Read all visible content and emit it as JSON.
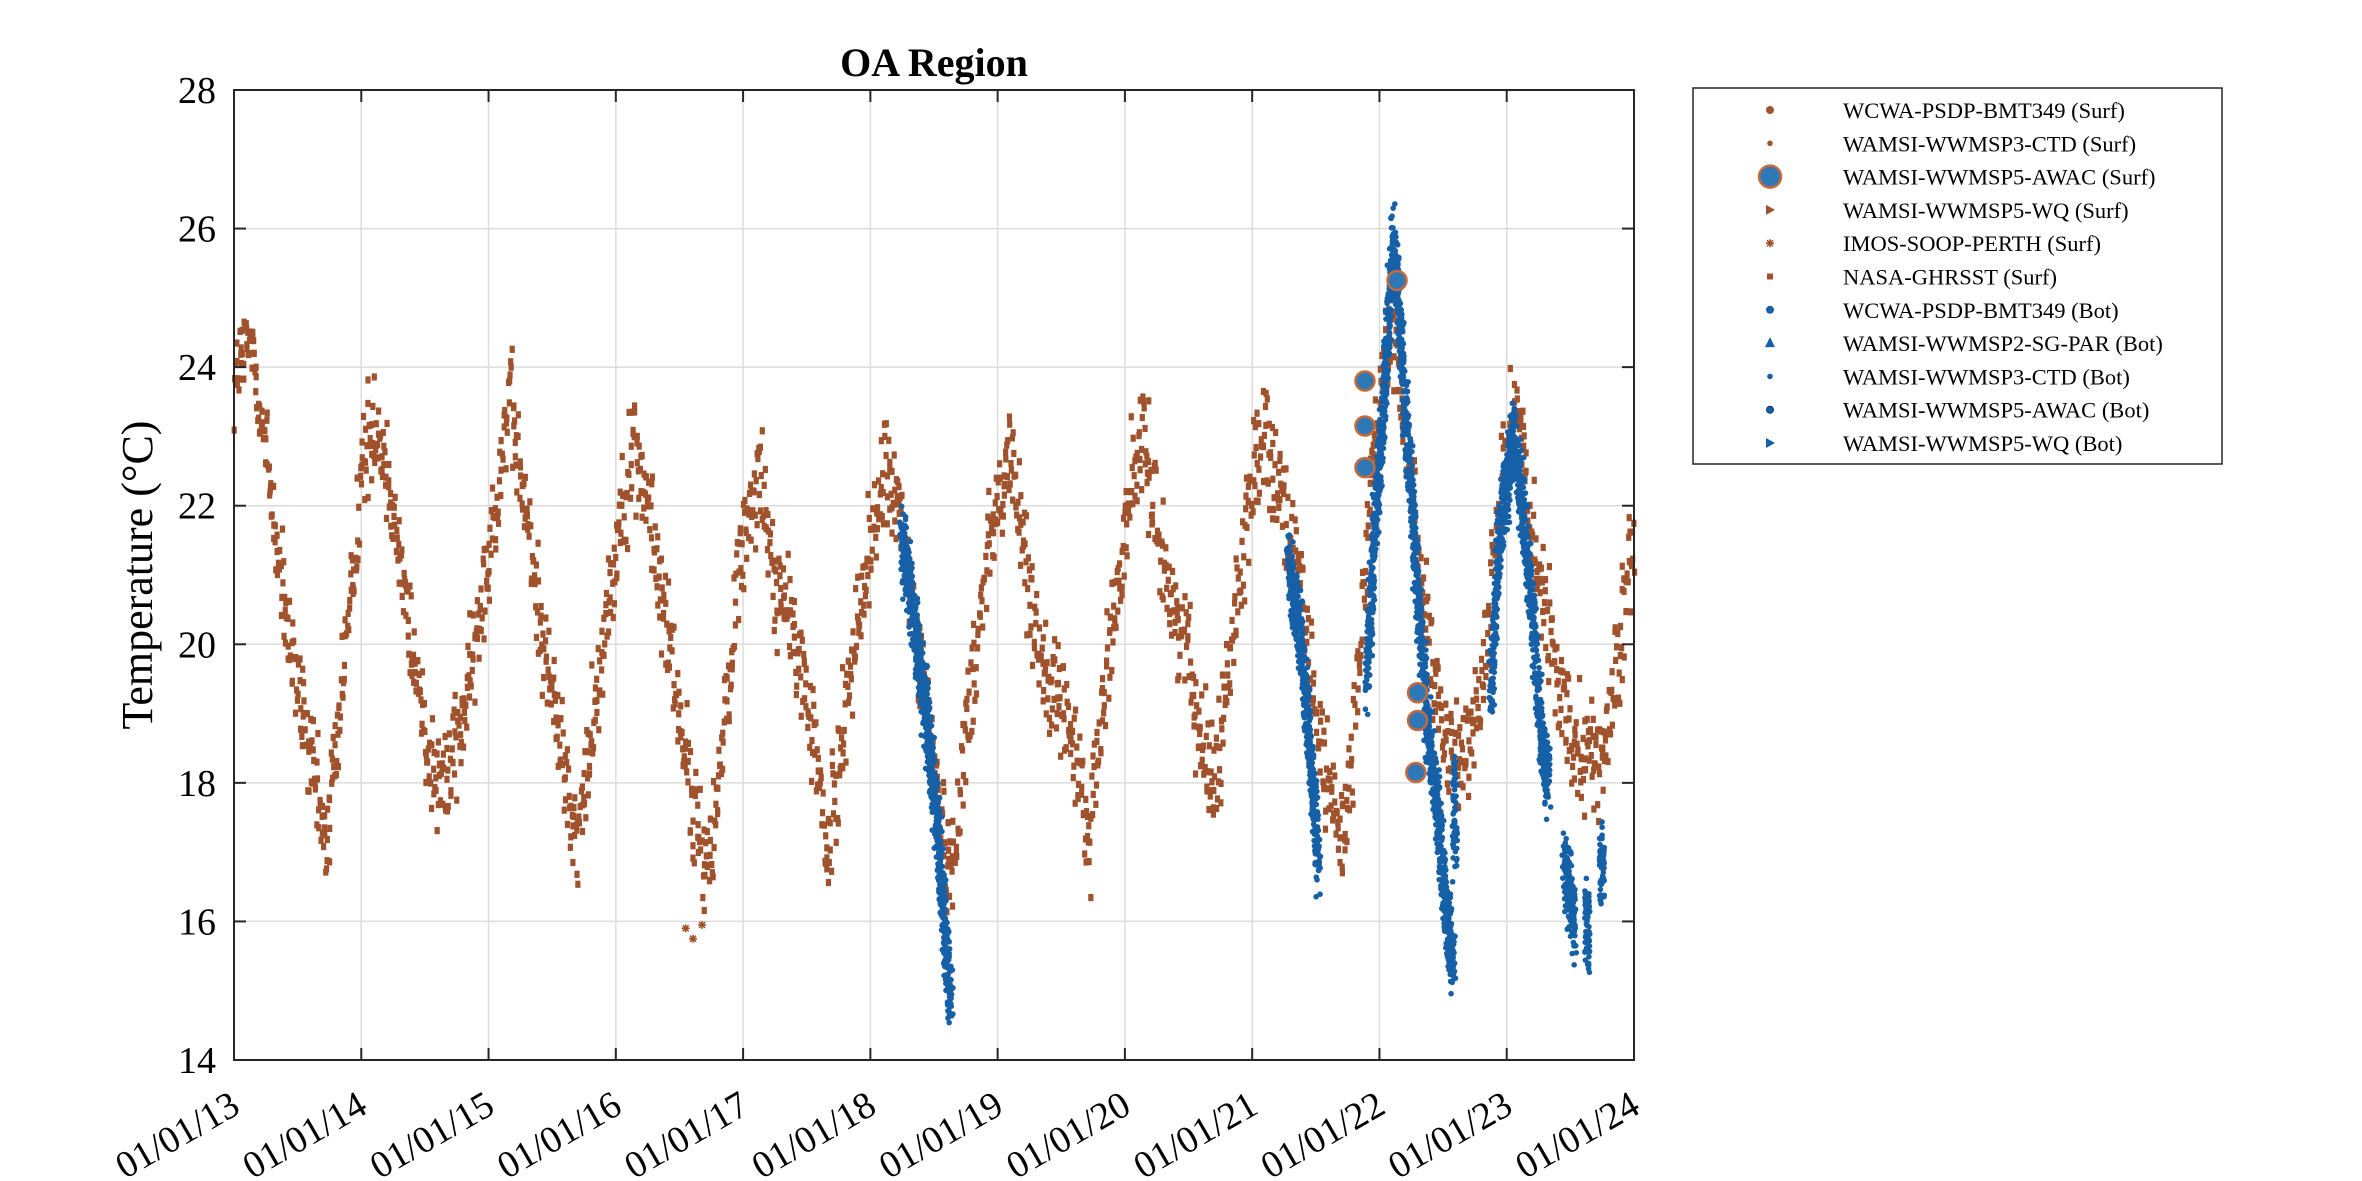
{
  "chart_data": {
    "type": "scatter",
    "title": "OA Region",
    "xlabel": "",
    "ylabel": "Temperature (°C)",
    "xlim": [
      "2013-01-01",
      "2024-01-01"
    ],
    "ylim": [
      14,
      28
    ],
    "grid": true,
    "legend_placement": "outside right",
    "xticks": [
      "01/01/13",
      "01/01/14",
      "01/01/15",
      "01/01/16",
      "01/01/17",
      "01/01/18",
      "01/01/19",
      "01/01/20",
      "01/01/21",
      "01/01/22",
      "01/01/23",
      "01/01/24"
    ],
    "yticks": [
      "14",
      "16",
      "18",
      "20",
      "22",
      "24",
      "26",
      "28"
    ],
    "colors": {
      "surf": "#a0522d",
      "bot": "#1660a8",
      "surf_marker_edge": "#c46a3c"
    },
    "series": [
      {
        "name": "WCWA-PSDP-BMT349 (Surf)",
        "marker": "dot",
        "group": "surf",
        "points": []
      },
      {
        "name": "WAMSI-WWMSP3-CTD (Surf)",
        "marker": "small-dot",
        "group": "surf",
        "points": []
      },
      {
        "name": "WAMSI-WWMSP5-AWAC (Surf)",
        "marker": "big-circle",
        "group": "surf",
        "points": [
          [
            "2021-11-20",
            23.8
          ],
          [
            "2021-11-20",
            23.15
          ],
          [
            "2021-11-20",
            22.55
          ],
          [
            "2022-02-20",
            25.25
          ],
          [
            "2022-04-20",
            19.3
          ],
          [
            "2022-04-20",
            18.9
          ],
          [
            "2022-04-15",
            18.15
          ]
        ]
      },
      {
        "name": "WAMSI-WWMSP5-WQ (Surf)",
        "marker": "triangle-right",
        "group": "surf",
        "points": []
      },
      {
        "name": "IMOS-SOOP-PERTH (Surf)",
        "marker": "asterisk",
        "group": "surf",
        "points": [
          [
            "2016-07-20",
            15.9
          ],
          [
            "2016-08-10",
            15.75
          ],
          [
            "2016-09-05",
            15.95
          ]
        ]
      },
      {
        "name": "NASA-GHRSST (Surf)",
        "marker": "square",
        "group": "surf",
        "anchors": [
          [
            "2013-01-01",
            23.8
          ],
          [
            "2013-02-20",
            24.4
          ],
          [
            "2013-04-10",
            22.5
          ],
          [
            "2013-06-01",
            20.2
          ],
          [
            "2013-07-20",
            18.9
          ],
          [
            "2013-09-20",
            17.1
          ],
          [
            "2013-11-10",
            19.5
          ],
          [
            "2014-01-05",
            22.6
          ],
          [
            "2014-02-10",
            23.3
          ],
          [
            "2014-04-01",
            22.1
          ],
          [
            "2014-05-20",
            20.2
          ],
          [
            "2014-07-15",
            18.4
          ],
          [
            "2014-09-01",
            18.0
          ],
          [
            "2014-11-15",
            19.6
          ],
          [
            "2015-01-15",
            21.8
          ],
          [
            "2015-03-01",
            23.6
          ],
          [
            "2015-04-20",
            21.8
          ],
          [
            "2015-06-10",
            20.0
          ],
          [
            "2015-08-01",
            18.4
          ],
          [
            "2015-09-15",
            17.1
          ],
          [
            "2015-11-10",
            19.5
          ],
          [
            "2016-01-10",
            21.7
          ],
          [
            "2016-02-25",
            22.9
          ],
          [
            "2016-04-15",
            21.6
          ],
          [
            "2016-06-10",
            19.8
          ],
          [
            "2016-08-10",
            17.6
          ],
          [
            "2016-09-15",
            16.7
          ],
          [
            "2016-11-05",
            18.5
          ],
          [
            "2016-12-20",
            21.2
          ],
          [
            "2017-02-15",
            22.6
          ],
          [
            "2017-04-01",
            20.9
          ],
          [
            "2017-06-01",
            20.1
          ],
          [
            "2017-08-01",
            18.3
          ],
          [
            "2017-09-01",
            16.9
          ],
          [
            "2017-11-01",
            19.5
          ],
          [
            "2018-01-10",
            21.7
          ],
          [
            "2018-02-20",
            22.6
          ],
          [
            "2018-04-10",
            21.3
          ],
          [
            "2018-06-01",
            19.5
          ],
          [
            "2018-07-20",
            17.6
          ],
          [
            "2018-08-20",
            16.6
          ],
          [
            "2018-10-01",
            18.6
          ],
          [
            "2018-12-01",
            21.4
          ],
          [
            "2019-02-05",
            22.7
          ],
          [
            "2019-04-01",
            20.9
          ],
          [
            "2019-05-20",
            19.4
          ],
          [
            "2019-07-10",
            19.0
          ],
          [
            "2019-08-20",
            18.2
          ],
          [
            "2019-09-20",
            17.1
          ],
          [
            "2019-11-20",
            20.1
          ],
          [
            "2020-01-20",
            22.3
          ],
          [
            "2020-02-25",
            23.0
          ],
          [
            "2020-04-10",
            21.5
          ],
          [
            "2020-05-20",
            20.5
          ],
          [
            "2020-07-01",
            19.9
          ],
          [
            "2020-08-10",
            18.6
          ],
          [
            "2020-09-20",
            18.1
          ],
          [
            "2020-11-01",
            19.9
          ],
          [
            "2020-12-20",
            22.0
          ],
          [
            "2021-02-01",
            23.1
          ],
          [
            "2021-03-15",
            22.4
          ],
          [
            "2021-05-01",
            21.3
          ],
          [
            "2021-06-20",
            19.5
          ],
          [
            "2021-08-05",
            17.9
          ],
          [
            "2021-09-20",
            17.2
          ],
          [
            "2021-11-01",
            19.6
          ],
          [
            "2021-12-15",
            22.8
          ],
          [
            "2022-02-05",
            24.7
          ],
          [
            "2022-03-10",
            23.3
          ],
          [
            "2022-04-20",
            21.5
          ],
          [
            "2022-06-01",
            19.4
          ],
          [
            "2022-07-15",
            18.4
          ],
          [
            "2022-09-01",
            18.2
          ],
          [
            "2022-10-20",
            19.5
          ],
          [
            "2022-12-20",
            22.6
          ],
          [
            "2023-02-01",
            23.4
          ],
          [
            "2023-03-20",
            21.4
          ],
          [
            "2023-05-01",
            20.1
          ],
          [
            "2023-06-20",
            18.9
          ],
          [
            "2023-08-10",
            18.6
          ],
          [
            "2023-10-01",
            18.2
          ],
          [
            "2023-11-15",
            19.6
          ],
          [
            "2024-01-01",
            21.6
          ]
        ]
      },
      {
        "name": "WCWA-PSDP-BMT349 (Bot)",
        "marker": "dot",
        "group": "bot",
        "segments": [
          [
            [
              "2018-04-01",
              21.6
            ],
            [
              "2018-05-15",
              20.0
            ],
            [
              "2018-06-20",
              18.6
            ],
            [
              "2018-07-10",
              17.5
            ],
            [
              "2018-08-05",
              15.8
            ],
            [
              "2018-08-20",
              14.9
            ]
          ],
          [
            [
              "2021-04-15",
              21.2
            ],
            [
              "2021-05-20",
              20.0
            ],
            [
              "2021-06-25",
              17.9
            ],
            [
              "2021-07-10",
              16.8
            ]
          ],
          [
            [
              "2021-11-25",
              19.4
            ],
            [
              "2021-12-15",
              21.4
            ],
            [
              "2022-01-15",
              23.6
            ],
            [
              "2022-02-10",
              25.9
            ],
            [
              "2022-03-01",
              24.5
            ],
            [
              "2022-03-25",
              22.8
            ],
            [
              "2022-04-20",
              20.8
            ],
            [
              "2022-05-15",
              19.0
            ],
            [
              "2022-06-20",
              17.4
            ],
            [
              "2022-07-15",
              15.9
            ],
            [
              "2022-08-01",
              15.4
            ]
          ],
          [
            [
              "2022-08-05",
              17.0
            ],
            [
              "2022-08-05",
              18.2
            ]
          ],
          [
            [
              "2022-11-15",
              19.2
            ],
            [
              "2022-12-10",
              21.5
            ],
            [
              "2023-01-20",
              23.0
            ],
            [
              "2023-02-15",
              22.0
            ],
            [
              "2023-03-20",
              20.2
            ],
            [
              "2023-04-10",
              18.6
            ],
            [
              "2023-05-01",
              18.0
            ]
          ],
          [
            [
              "2023-06-15",
              16.9
            ],
            [
              "2023-07-15",
              16.0
            ]
          ],
          [
            [
              "2023-08-20",
              15.5
            ],
            [
              "2023-08-20",
              16.4
            ]
          ],
          [
            [
              "2023-10-01",
              16.6
            ],
            [
              "2023-10-01",
              17.1
            ]
          ]
        ]
      },
      {
        "name": "WAMSI-WWMSP2-SG-PAR (Bot)",
        "marker": "triangle-up",
        "group": "bot",
        "points": []
      },
      {
        "name": "WAMSI-WWMSP3-CTD (Bot)",
        "marker": "small-dot",
        "group": "bot",
        "points": []
      },
      {
        "name": "WAMSI-WWMSP5-AWAC (Bot)",
        "marker": "dot-outline",
        "group": "bot",
        "points": []
      },
      {
        "name": "WAMSI-WWMSP5-WQ (Bot)",
        "marker": "triangle-right",
        "group": "bot",
        "points": []
      }
    ]
  }
}
